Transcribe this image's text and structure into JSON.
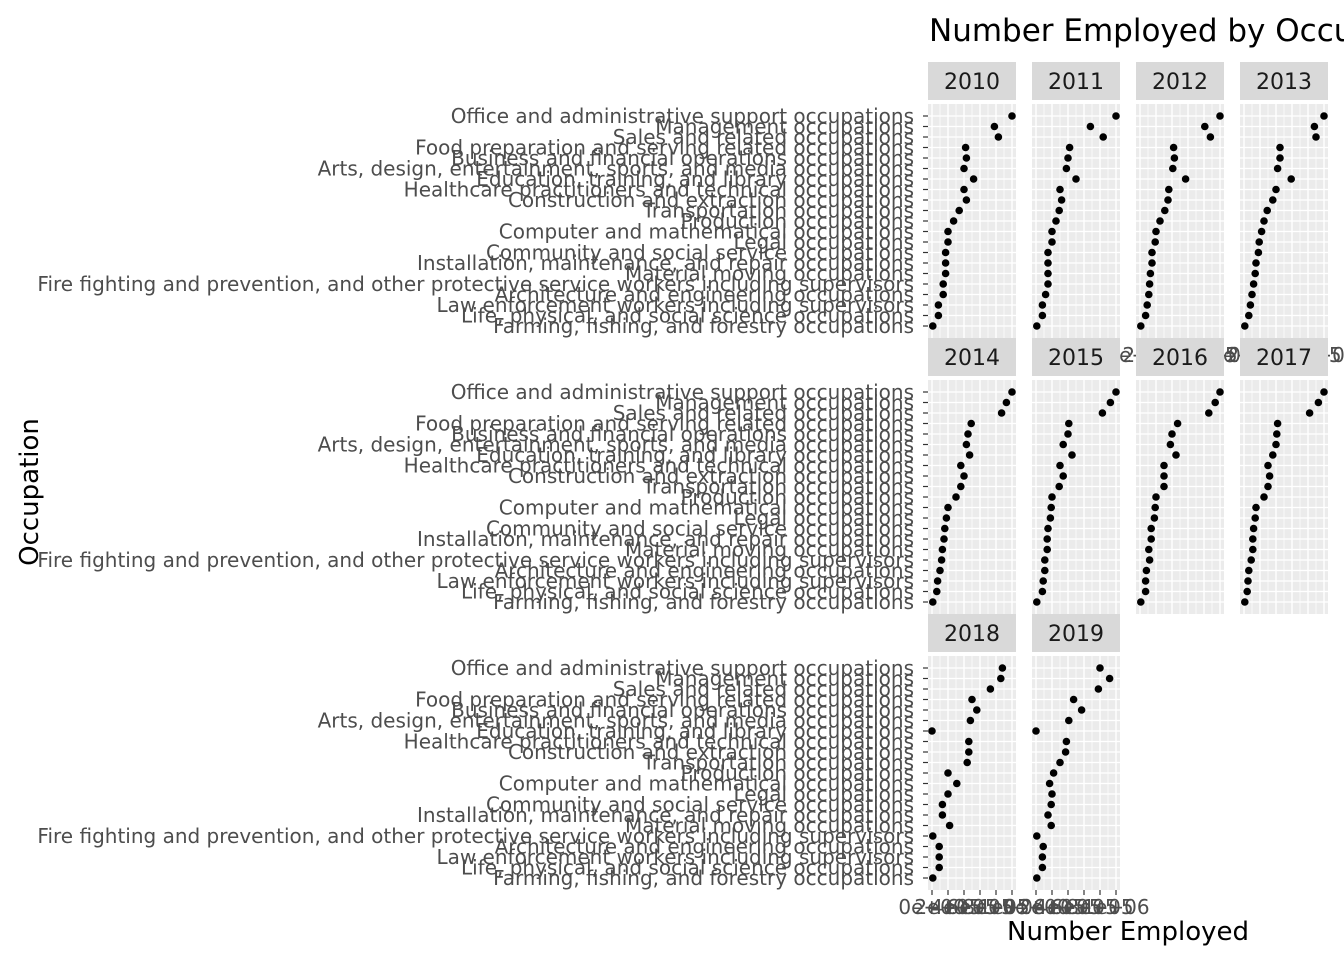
{
  "chart_data": {
    "type": "scatter",
    "title": "Number Employed by Occu",
    "xlabel": "Number Employed",
    "ylabel": "Occupation",
    "facet_by": "Year",
    "grid": true,
    "legend": "none",
    "point_color": "#000000",
    "panel_background": "#ebebeb",
    "strip_background": "#d9d9d9",
    "occupations": [
      "Office and administrative support occupations",
      "Management occupations",
      "Sales and related occupations",
      "Food preparation and serving related occupations",
      "Business and financial operations occupations",
      "Arts, design, entertainment, sports, and media occupations",
      "Education, training, and library occupations",
      "Healthcare practitioners and technical occupations",
      "Construction and extraction occupations",
      "Transportation occupations",
      "Production occupations",
      "Computer and mathematical occupations",
      "Legal occupations",
      "Community and social service occupations",
      "Installation, maintenance, and repair occupations",
      "Material moving occupations",
      "Fire fighting and prevention, and other protective service workers including supervisors",
      "Architecture and engineering occupations",
      "Law enforcement workers including supervisors",
      "Life, physical, and social science occupations",
      "Farming, fishing, and forestry occupations"
    ],
    "x_ticks": [
      "0e+00",
      "2e+05",
      "4e+05",
      "6e+05",
      "8e+05",
      "1e+06"
    ],
    "x_tick_values": [
      0,
      200000,
      400000,
      600000,
      800000,
      1000000
    ],
    "xlim": [
      0,
      1000000
    ],
    "x_axis_panels": [
      "2012",
      "2013",
      "2018",
      "2019"
    ],
    "panels": [
      {
        "year": "2010",
        "values": [
          1000000,
          780000,
          830000,
          420000,
          430000,
          400000,
          520000,
          400000,
          430000,
          340000,
          270000,
          200000,
          200000,
          170000,
          170000,
          170000,
          140000,
          140000,
          80000,
          80000,
          10000
        ]
      },
      {
        "year": "2011",
        "values": [
          1000000,
          680000,
          840000,
          420000,
          400000,
          380000,
          500000,
          300000,
          320000,
          290000,
          250000,
          200000,
          200000,
          150000,
          150000,
          150000,
          150000,
          120000,
          80000,
          80000,
          10000
        ]
      },
      {
        "year": "2012",
        "values": [
          1000000,
          810000,
          880000,
          420000,
          430000,
          410000,
          570000,
          360000,
          350000,
          310000,
          250000,
          200000,
          190000,
          150000,
          150000,
          130000,
          120000,
          110000,
          90000,
          70000,
          10000
        ]
      },
      {
        "year": "2013",
        "values": [
          1000000,
          880000,
          900000,
          450000,
          450000,
          420000,
          590000,
          400000,
          360000,
          290000,
          250000,
          220000,
          190000,
          180000,
          150000,
          140000,
          120000,
          100000,
          80000,
          60000,
          10000
        ]
      },
      {
        "year": "2014",
        "values": [
          1000000,
          930000,
          870000,
          490000,
          450000,
          430000,
          470000,
          360000,
          400000,
          360000,
          300000,
          200000,
          180000,
          160000,
          150000,
          130000,
          120000,
          100000,
          70000,
          60000,
          10000
        ]
      },
      {
        "year": "2015",
        "values": [
          1000000,
          930000,
          830000,
          410000,
          400000,
          340000,
          450000,
          300000,
          340000,
          290000,
          200000,
          190000,
          180000,
          150000,
          140000,
          140000,
          110000,
          110000,
          90000,
          80000,
          10000
        ]
      },
      {
        "year": "2016",
        "values": [
          1000000,
          940000,
          860000,
          470000,
          400000,
          380000,
          450000,
          300000,
          300000,
          300000,
          200000,
          190000,
          180000,
          140000,
          140000,
          110000,
          120000,
          80000,
          70000,
          70000,
          10000
        ]
      },
      {
        "year": "2017",
        "values": [
          1000000,
          930000,
          820000,
          420000,
          410000,
          400000,
          360000,
          300000,
          320000,
          300000,
          250000,
          150000,
          140000,
          120000,
          110000,
          110000,
          90000,
          60000,
          50000,
          40000,
          10000
        ]
      },
      {
        "year": "2018",
        "values": [
          880000,
          860000,
          730000,
          500000,
          560000,
          480000,
          0,
          460000,
          460000,
          440000,
          200000,
          310000,
          200000,
          130000,
          130000,
          220000,
          10000,
          90000,
          90000,
          90000,
          10000
        ]
      },
      {
        "year": "2019",
        "values": [
          800000,
          920000,
          780000,
          470000,
          570000,
          410000,
          0,
          380000,
          370000,
          300000,
          220000,
          170000,
          200000,
          190000,
          150000,
          190000,
          10000,
          90000,
          80000,
          80000,
          10000
        ]
      }
    ]
  }
}
